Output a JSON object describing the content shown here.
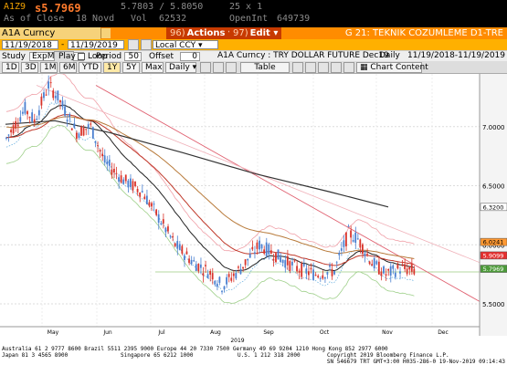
{
  "quote": {
    "ticker": "A1Z9",
    "last": "s5.7969",
    "as_of": "As of Close",
    "date": "18 Novd",
    "bid_ask": "5.7803 / 5.8050",
    "size": "25 x 1",
    "vol_label": "Vol",
    "vol": "62532",
    "oi_label": "OpenInt",
    "oi": "649739"
  },
  "command": {
    "security": "A1A Curncy",
    "actions_num": "96)",
    "actions_label": "Actions",
    "edit_num": "97)",
    "edit_label": "Edit",
    "title": "G 21: TEKNIK COZUMLEME D1-TRE"
  },
  "daterow": {
    "start": "11/19/2018",
    "end": "11/19/2019",
    "currency": "Local CCY"
  },
  "study": {
    "study_label": "Study",
    "study_value": "ExpMA",
    "period_label": "Period",
    "period_value": "50",
    "offset_label": "Offset",
    "offset_value": "0",
    "play_label": "Play",
    "loop_label": "Loop",
    "chart_title": "A1A Curncy : TRY DOLLAR FUTURE Dec19",
    "frequency": "Daily",
    "range": "11/19/2018-11/19/2019"
  },
  "toolbar": {
    "ranges": [
      "1D",
      "3D",
      "1M",
      "6M",
      "YTD",
      "1Y",
      "5Y",
      "Max"
    ],
    "active_range": "1Y",
    "period": "Daily",
    "table_label": "Table",
    "chart_content_label": "Chart Content"
  },
  "chart_data": {
    "type": "candlestick",
    "x_labels": [
      "May",
      "Jun",
      "Jul",
      "Aug",
      "Sep",
      "Oct",
      "Nov",
      "Dec"
    ],
    "x_year": "2019",
    "y_ticks": [
      "7.0000",
      "6.5000",
      "6.0000",
      "5.5000"
    ],
    "ylim": [
      5.5,
      7.4
    ],
    "price_tags": [
      {
        "label": "6.3200",
        "value": 6.32,
        "bg": "#ffffff",
        "fg": "#000000"
      },
      {
        "label": "6.0241",
        "value": 6.0241,
        "bg": "#ff9933",
        "fg": "#000000"
      },
      {
        "label": "5.9099",
        "value": 5.9099,
        "bg": "#e5302f",
        "fg": "#ffffff"
      },
      {
        "label": "5.7969",
        "value": 5.7969,
        "bg": "#4d9b3a",
        "fg": "#ffffff"
      }
    ],
    "colors": {
      "up": "#4a7fd0",
      "down": "#d9342b",
      "ema_long": "#333333",
      "ema_mid": "#b87a3a",
      "ema_short": "#c0392b",
      "bollinger": "#f0a0a8",
      "trend": "#e06070",
      "envelope": "#b6d8a0"
    }
  },
  "footer": {
    "line1": "Australia 61 2 9777 8600  Brazil 5511 2395 9000  Europe 44 20 7330 7500  Germany 49 69 9204 1210  Hong Kong 852 2977 6000",
    "line2a": "Japan 81 3 4565 8900",
    "line2b": "Singapore 65 6212 1000",
    "line2c": "U.S. 1 212 318 2000",
    "line2d": "Copyright 2019 Bloomberg Finance L.P.",
    "line3": "SN 546679 TRT  GMT+3:00 H035-286-0 19-Nov-2019 09:14:43"
  }
}
